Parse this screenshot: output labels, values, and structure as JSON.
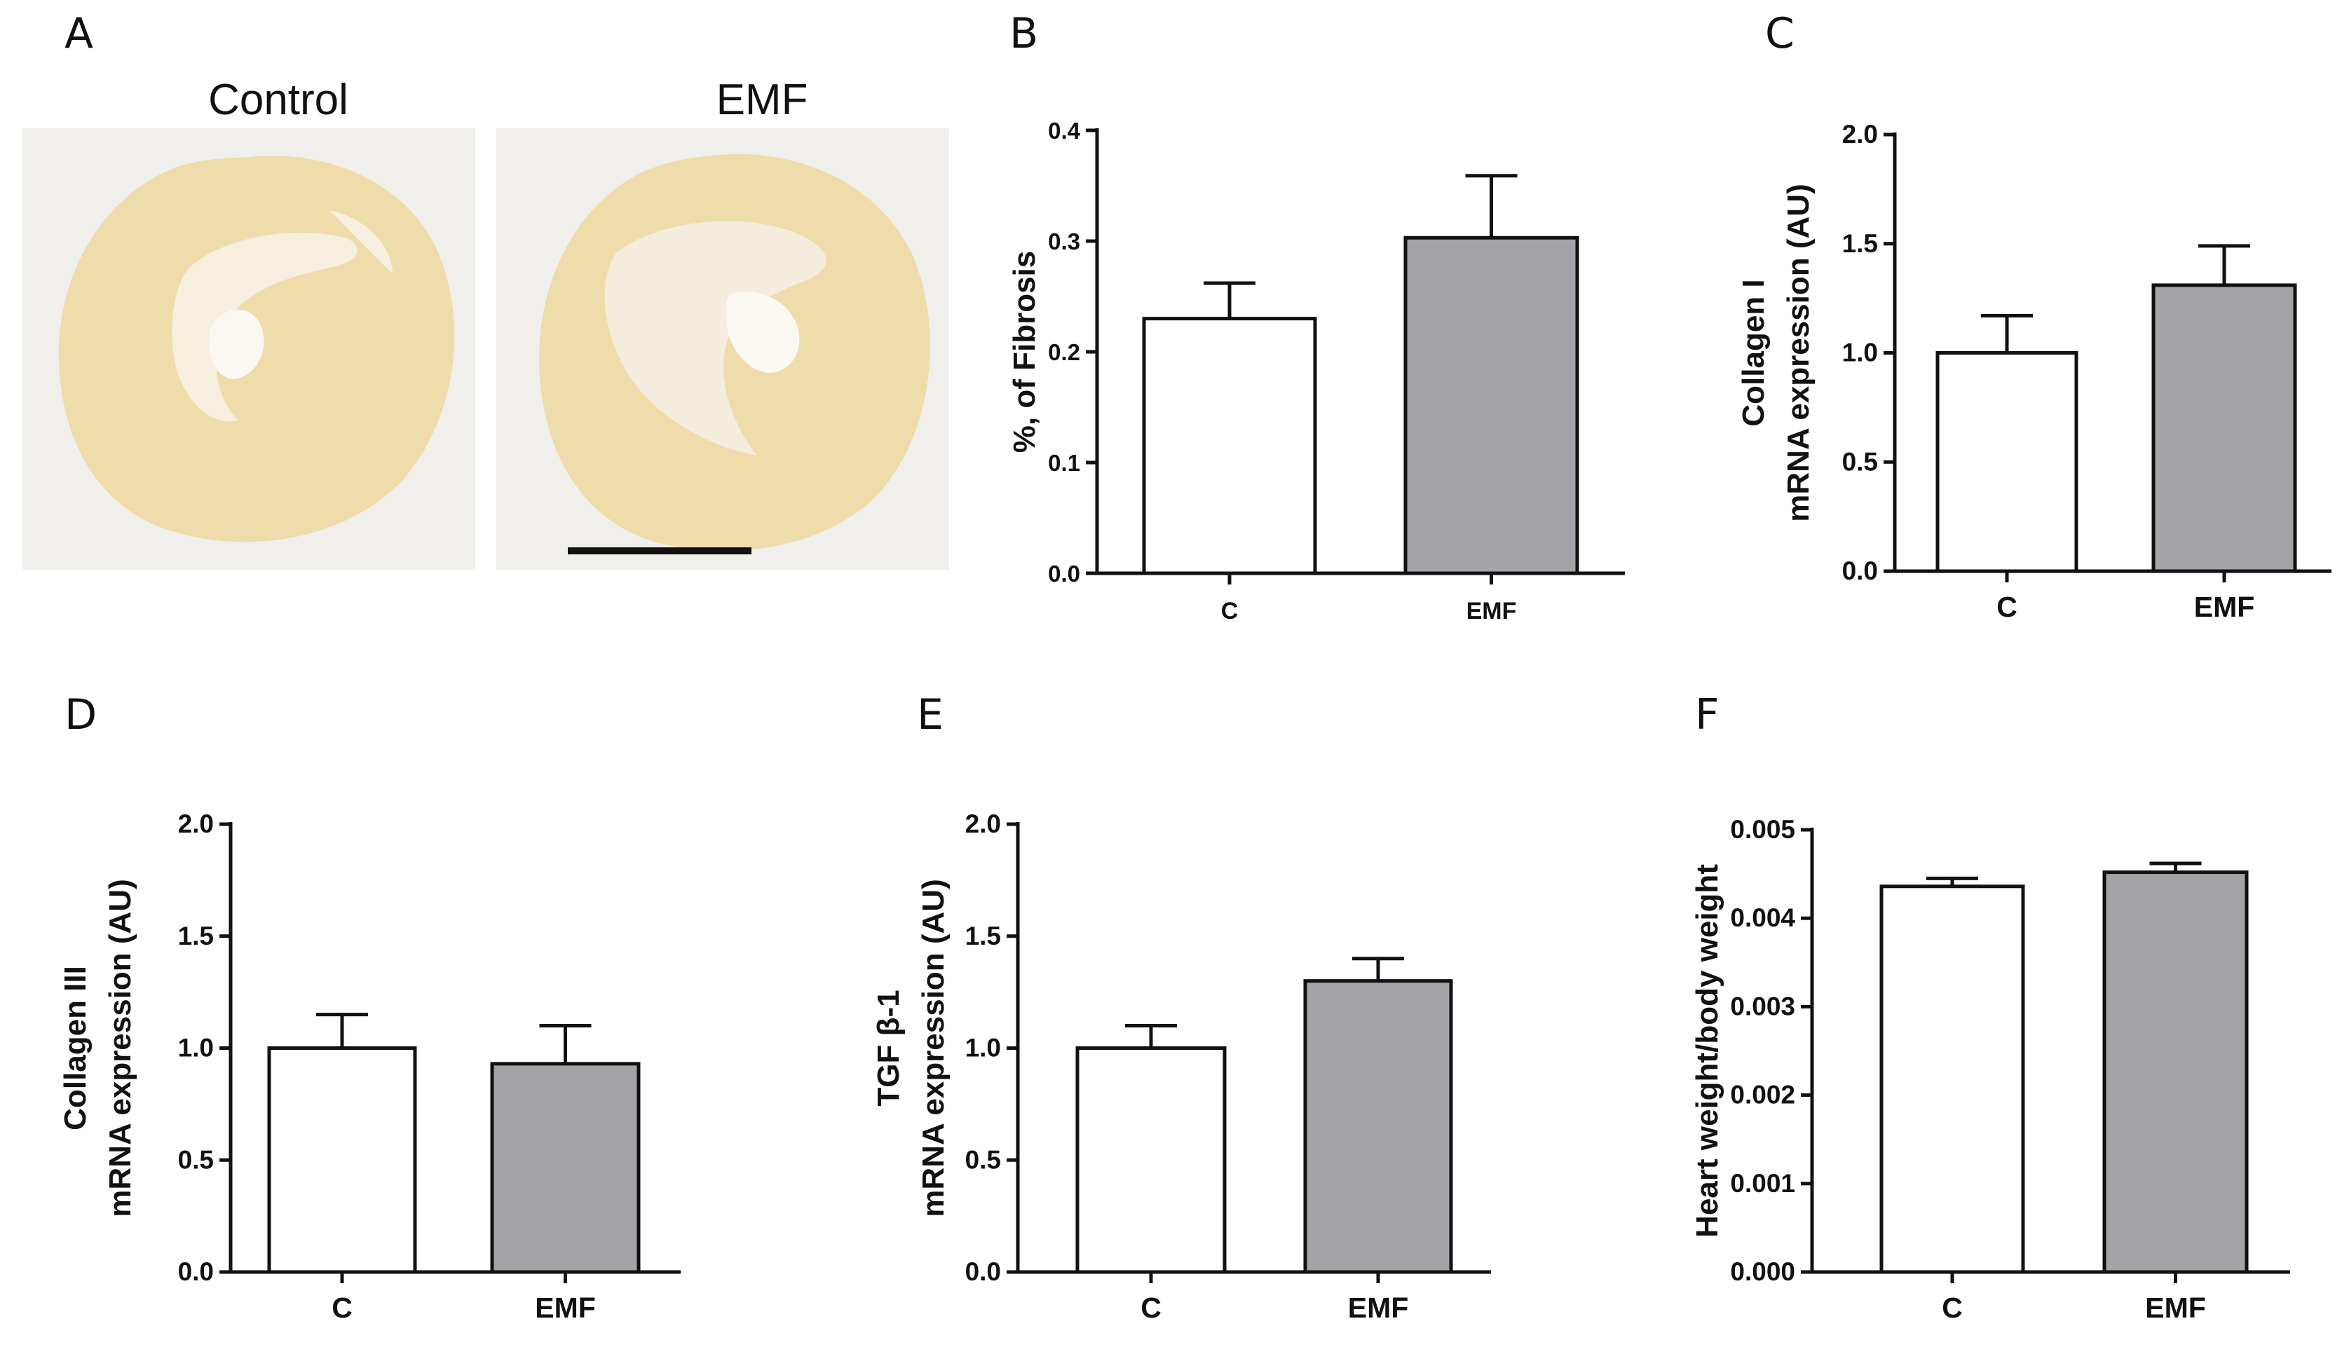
{
  "panel_a": {
    "letter": "A",
    "captions": [
      "Control",
      "EMF"
    ]
  },
  "chart_data": [
    {
      "panel": "B",
      "type": "bar",
      "categories": [
        "C",
        "EMF"
      ],
      "values": [
        0.23,
        0.303
      ],
      "errors": [
        0.032,
        0.056
      ],
      "ylabel": "%, of Fibrosis",
      "ylim": [
        0,
        0.4
      ],
      "yticks": [
        "0.0",
        "0.1",
        "0.2",
        "0.3",
        "0.4"
      ],
      "colors": [
        "#ffffff",
        "#a4a3a8"
      ],
      "grid": false
    },
    {
      "panel": "C",
      "type": "bar",
      "categories": [
        "C",
        "EMF"
      ],
      "values": [
        1.0,
        1.31
      ],
      "errors": [
        0.17,
        0.18
      ],
      "ylabel": "Collagen I\nmRNA expression (AU)",
      "ylim": [
        0,
        2.0
      ],
      "yticks": [
        "0.0",
        "0.5",
        "1.0",
        "1.5",
        "2.0"
      ],
      "colors": [
        "#ffffff",
        "#a4a3a8"
      ],
      "grid": false
    },
    {
      "panel": "D",
      "type": "bar",
      "categories": [
        "C",
        "EMF"
      ],
      "values": [
        1.0,
        0.93
      ],
      "errors": [
        0.15,
        0.17
      ],
      "ylabel": "Collagen III\nmRNA expression (AU)",
      "ylim": [
        0,
        2.0
      ],
      "yticks": [
        "0.0",
        "0.5",
        "1.0",
        "1.5",
        "2.0"
      ],
      "colors": [
        "#ffffff",
        "#a4a3a8"
      ],
      "grid": false
    },
    {
      "panel": "E",
      "type": "bar",
      "categories": [
        "C",
        "EMF"
      ],
      "values": [
        1.0,
        1.3
      ],
      "errors": [
        0.1,
        0.1
      ],
      "ylabel": "TGF β-1\nmRNA expression (AU)",
      "ylim": [
        0,
        2.0
      ],
      "yticks": [
        "0.0",
        "0.5",
        "1.0",
        "1.5",
        "2.0"
      ],
      "colors": [
        "#ffffff",
        "#a4a3a8"
      ],
      "grid": false
    },
    {
      "panel": "F",
      "type": "bar",
      "categories": [
        "C",
        "EMF"
      ],
      "values": [
        0.00436,
        0.00452
      ],
      "errors": [
        9e-05,
        0.0001
      ],
      "ylabel": "Heart weight/body weight",
      "ylim": [
        0,
        0.005
      ],
      "yticks": [
        "0.000",
        "0.001",
        "0.002",
        "0.003",
        "0.004",
        "0.005"
      ],
      "colors": [
        "#ffffff",
        "#a4a3a8"
      ],
      "grid": false
    }
  ]
}
